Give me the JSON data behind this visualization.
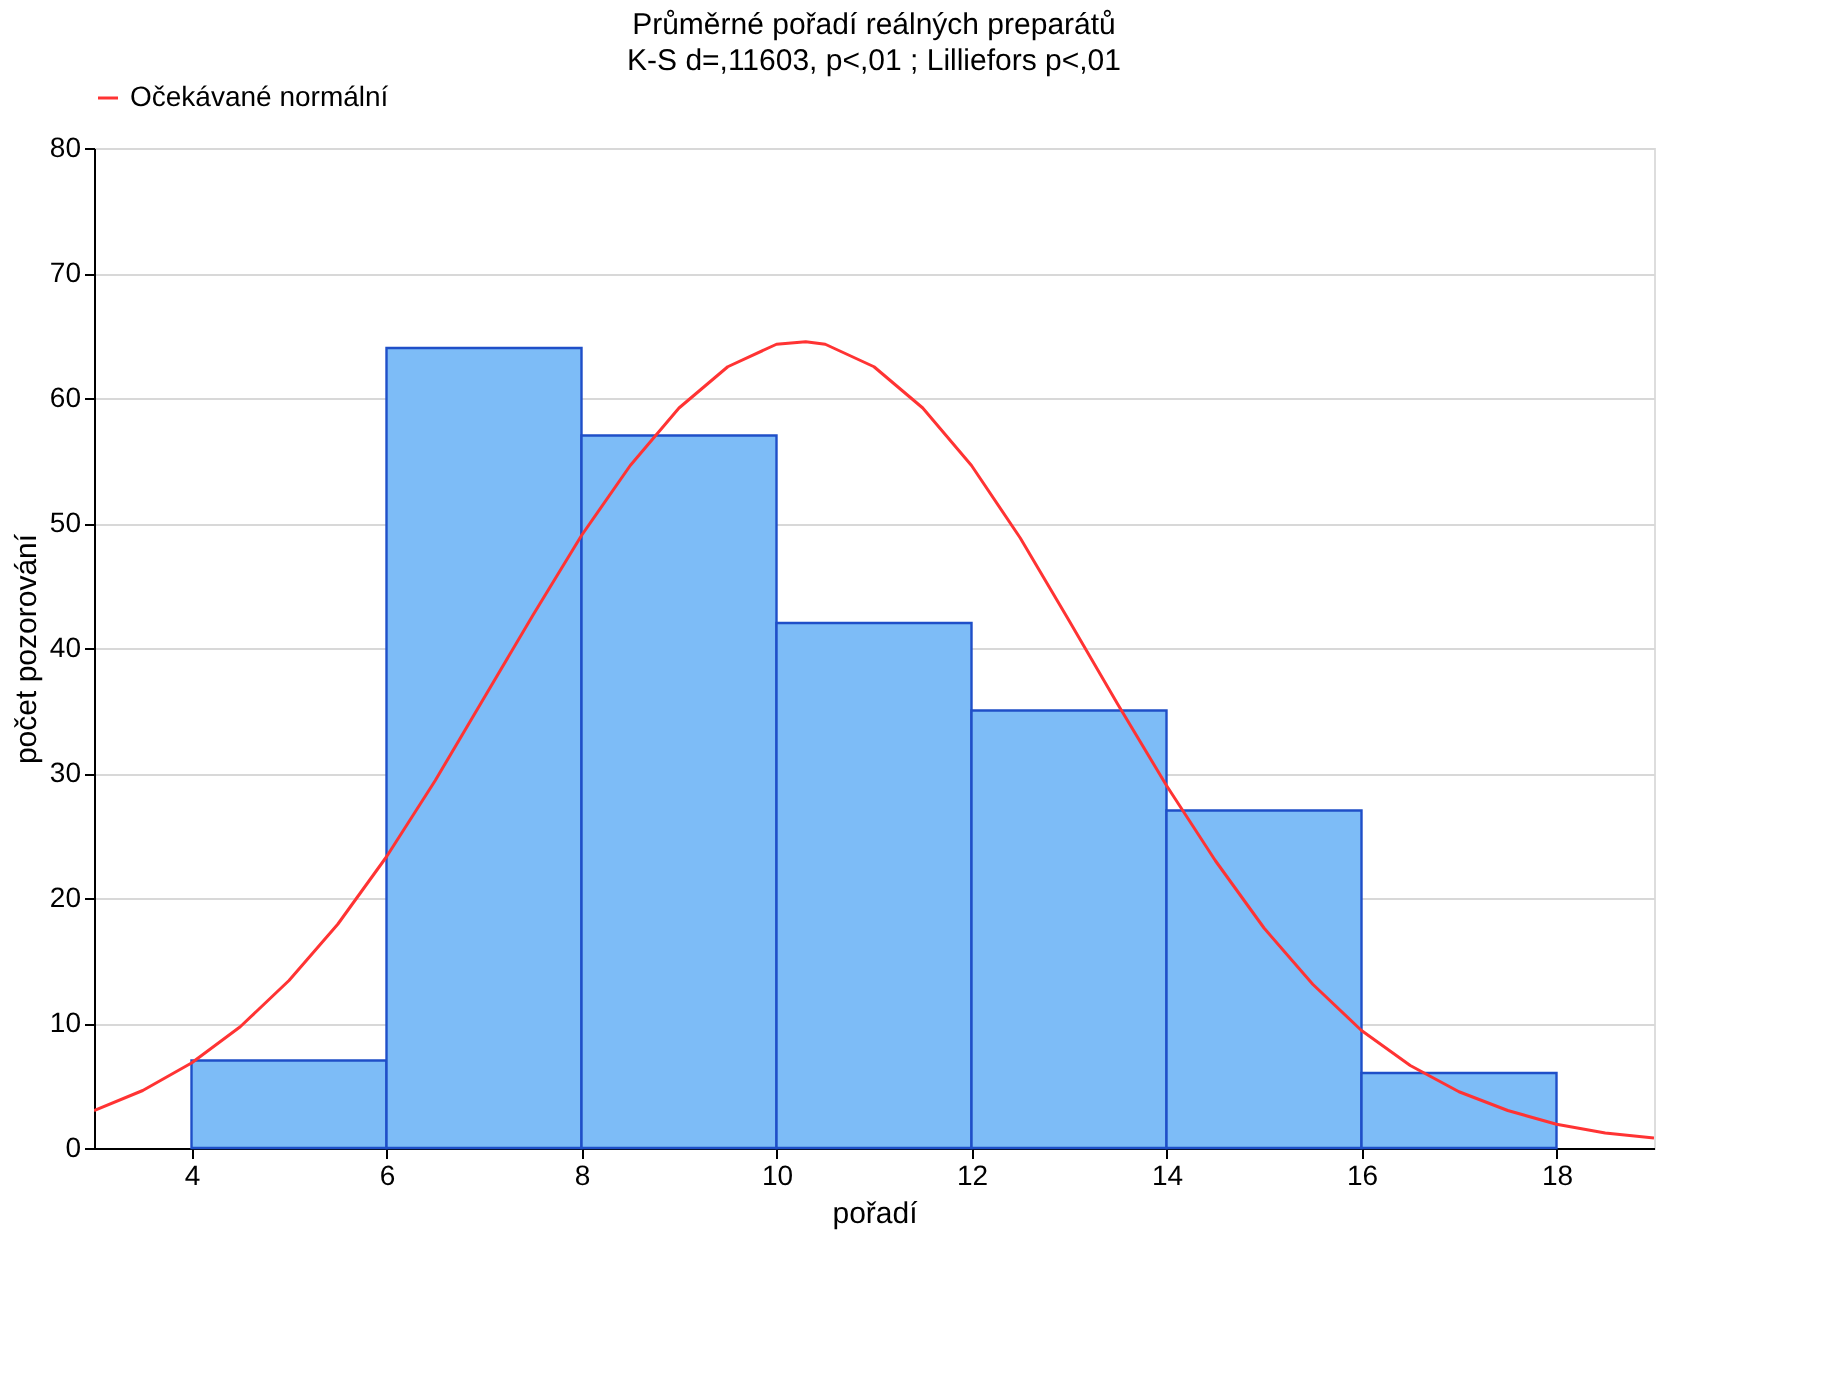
{
  "chart_data": {
    "type": "histogram",
    "title": "Průměrné pořadí reálných preparátů",
    "subtitle": "K-S d=,11603, p<,01 ; Lilliefors p<,01",
    "xlabel": "pořadí",
    "ylabel": "počet pozorování",
    "bins": [
      4,
      6,
      8,
      10,
      12,
      14,
      16,
      18
    ],
    "values": [
      7,
      64,
      57,
      42,
      35,
      27,
      6
    ],
    "color": "#7dbcf7",
    "series": [
      {
        "name": "Očekávané normální",
        "type": "line",
        "color": "#ff3333",
        "x": [
          3,
          3.5,
          4,
          4.5,
          5,
          5.5,
          6,
          6.5,
          7,
          7.5,
          8,
          8.5,
          9,
          9.5,
          10,
          10.3,
          10.5,
          11,
          11.5,
          12,
          12.5,
          13,
          13.5,
          14,
          14.5,
          15,
          15.5,
          16,
          16.5,
          17,
          17.5,
          18,
          18.5,
          19
        ],
        "values": [
          3,
          4.6,
          6.8,
          9.7,
          13.4,
          17.9,
          23.3,
          29.4,
          36,
          42.6,
          49,
          54.6,
          59.2,
          62.5,
          64.3,
          64.5,
          64.3,
          62.5,
          59.2,
          54.6,
          48.8,
          42.2,
          35.5,
          29,
          23,
          17.6,
          13.1,
          9.4,
          6.6,
          4.5,
          3,
          1.9,
          1.2,
          0.8
        ]
      }
    ],
    "xlim": [
      3,
      19
    ],
    "ylim": [
      0,
      80
    ],
    "xticks": [
      4,
      6,
      8,
      10,
      12,
      14,
      16,
      18
    ],
    "yticks": [
      0,
      10,
      20,
      30,
      40,
      50,
      60,
      70,
      80
    ],
    "grid": "y",
    "legend": "top"
  }
}
